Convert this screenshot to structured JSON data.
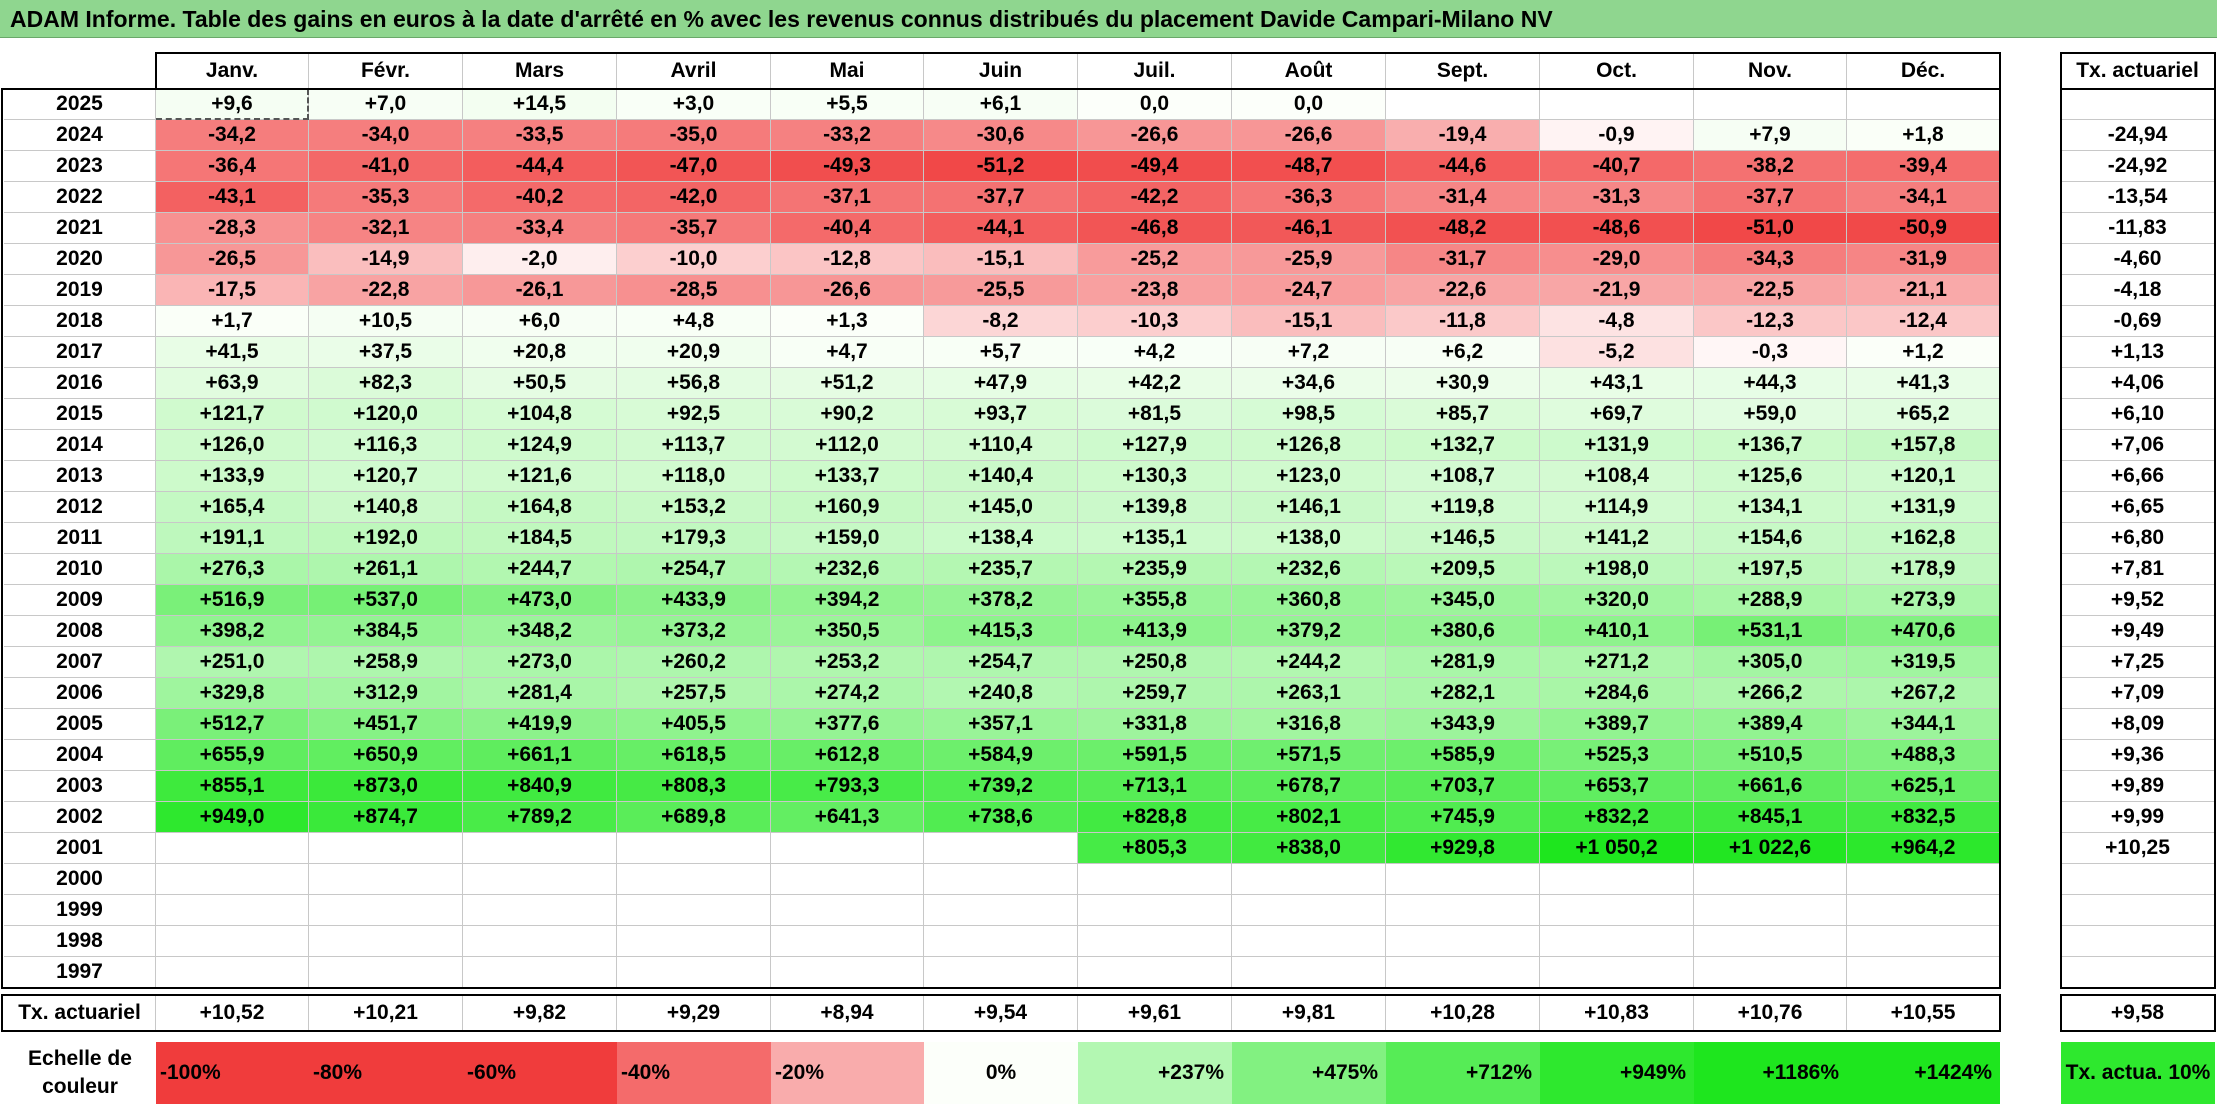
{
  "title": "ADAM Informe. Table des gains en euros à la date d'arrêté en % avec les revenus connus distribués du placement Davide Campari-Milano NV",
  "rate_header": "Tx. actuariel",
  "footer_label": "Tx. actuariel",
  "legend_label": "Echelle de couleur",
  "colors": {
    "neg_strong": "#f03c3c",
    "pos_strong": "#1ee61e",
    "neutral": "#ffffff",
    "title_bg": "#8fd68f"
  },
  "chart_data": {
    "type": "heatmap",
    "months": [
      "Janv.",
      "Févr.",
      "Mars",
      "Avril",
      "Mai",
      "Juin",
      "Juil.",
      "Août",
      "Sept.",
      "Oct.",
      "Nov.",
      "Déc."
    ],
    "years": [
      "2025",
      "2024",
      "2023",
      "2022",
      "2021",
      "2020",
      "2019",
      "2018",
      "2017",
      "2016",
      "2015",
      "2014",
      "2013",
      "2012",
      "2011",
      "2010",
      "2009",
      "2008",
      "2007",
      "2006",
      "2005",
      "2004",
      "2003",
      "2002",
      "2001",
      "2000",
      "1999",
      "1998",
      "1997"
    ],
    "values": [
      [
        "+9,6",
        "+7,0",
        "+14,5",
        "+3,0",
        "+5,5",
        "+6,1",
        "0,0",
        "0,0",
        "",
        "",
        "",
        ""
      ],
      [
        "-34,2",
        "-34,0",
        "-33,5",
        "-35,0",
        "-33,2",
        "-30,6",
        "-26,6",
        "-26,6",
        "-19,4",
        "-0,9",
        "+7,9",
        "+1,8"
      ],
      [
        "-36,4",
        "-41,0",
        "-44,4",
        "-47,0",
        "-49,3",
        "-51,2",
        "-49,4",
        "-48,7",
        "-44,6",
        "-40,7",
        "-38,2",
        "-39,4"
      ],
      [
        "-43,1",
        "-35,3",
        "-40,2",
        "-42,0",
        "-37,1",
        "-37,7",
        "-42,2",
        "-36,3",
        "-31,4",
        "-31,3",
        "-37,7",
        "-34,1"
      ],
      [
        "-28,3",
        "-32,1",
        "-33,4",
        "-35,7",
        "-40,4",
        "-44,1",
        "-46,8",
        "-46,1",
        "-48,2",
        "-48,6",
        "-51,0",
        "-50,9"
      ],
      [
        "-26,5",
        "-14,9",
        "-2,0",
        "-10,0",
        "-12,8",
        "-15,1",
        "-25,2",
        "-25,9",
        "-31,7",
        "-29,0",
        "-34,3",
        "-31,9"
      ],
      [
        "-17,5",
        "-22,8",
        "-26,1",
        "-28,5",
        "-26,6",
        "-25,5",
        "-23,8",
        "-24,7",
        "-22,6",
        "-21,9",
        "-22,5",
        "-21,1"
      ],
      [
        "+1,7",
        "+10,5",
        "+6,0",
        "+4,8",
        "+1,3",
        "-8,2",
        "-10,3",
        "-15,1",
        "-11,8",
        "-4,8",
        "-12,3",
        "-12,4"
      ],
      [
        "+41,5",
        "+37,5",
        "+20,8",
        "+20,9",
        "+4,7",
        "+5,7",
        "+4,2",
        "+7,2",
        "+6,2",
        "-5,2",
        "-0,3",
        "+1,2"
      ],
      [
        "+63,9",
        "+82,3",
        "+50,5",
        "+56,8",
        "+51,2",
        "+47,9",
        "+42,2",
        "+34,6",
        "+30,9",
        "+43,1",
        "+44,3",
        "+41,3"
      ],
      [
        "+121,7",
        "+120,0",
        "+104,8",
        "+92,5",
        "+90,2",
        "+93,7",
        "+81,5",
        "+98,5",
        "+85,7",
        "+69,7",
        "+59,0",
        "+65,2"
      ],
      [
        "+126,0",
        "+116,3",
        "+124,9",
        "+113,7",
        "+112,0",
        "+110,4",
        "+127,9",
        "+126,8",
        "+132,7",
        "+131,9",
        "+136,7",
        "+157,8"
      ],
      [
        "+133,9",
        "+120,7",
        "+121,6",
        "+118,0",
        "+133,7",
        "+140,4",
        "+130,3",
        "+123,0",
        "+108,7",
        "+108,4",
        "+125,6",
        "+120,1"
      ],
      [
        "+165,4",
        "+140,8",
        "+164,8",
        "+153,2",
        "+160,9",
        "+145,0",
        "+139,8",
        "+146,1",
        "+119,8",
        "+114,9",
        "+134,1",
        "+131,9"
      ],
      [
        "+191,1",
        "+192,0",
        "+184,5",
        "+179,3",
        "+159,0",
        "+138,4",
        "+135,1",
        "+138,0",
        "+146,5",
        "+141,2",
        "+154,6",
        "+162,8"
      ],
      [
        "+276,3",
        "+261,1",
        "+244,7",
        "+254,7",
        "+232,6",
        "+235,7",
        "+235,9",
        "+232,6",
        "+209,5",
        "+198,0",
        "+197,5",
        "+178,9"
      ],
      [
        "+516,9",
        "+537,0",
        "+473,0",
        "+433,9",
        "+394,2",
        "+378,2",
        "+355,8",
        "+360,8",
        "+345,0",
        "+320,0",
        "+288,9",
        "+273,9"
      ],
      [
        "+398,2",
        "+384,5",
        "+348,2",
        "+373,2",
        "+350,5",
        "+415,3",
        "+413,9",
        "+379,2",
        "+380,6",
        "+410,1",
        "+531,1",
        "+470,6"
      ],
      [
        "+251,0",
        "+258,9",
        "+273,0",
        "+260,2",
        "+253,2",
        "+254,7",
        "+250,8",
        "+244,2",
        "+281,9",
        "+271,2",
        "+305,0",
        "+319,5"
      ],
      [
        "+329,8",
        "+312,9",
        "+281,4",
        "+257,5",
        "+274,2",
        "+240,8",
        "+259,7",
        "+263,1",
        "+282,1",
        "+284,6",
        "+266,2",
        "+267,2"
      ],
      [
        "+512,7",
        "+451,7",
        "+419,9",
        "+405,5",
        "+377,6",
        "+357,1",
        "+331,8",
        "+316,8",
        "+343,9",
        "+389,7",
        "+389,4",
        "+344,1"
      ],
      [
        "+655,9",
        "+650,9",
        "+661,1",
        "+618,5",
        "+612,8",
        "+584,9",
        "+591,5",
        "+571,5",
        "+585,9",
        "+525,3",
        "+510,5",
        "+488,3"
      ],
      [
        "+855,1",
        "+873,0",
        "+840,9",
        "+808,3",
        "+793,3",
        "+739,2",
        "+713,1",
        "+678,7",
        "+703,7",
        "+653,7",
        "+661,6",
        "+625,1"
      ],
      [
        "+949,0",
        "+874,7",
        "+789,2",
        "+689,8",
        "+641,3",
        "+738,6",
        "+828,8",
        "+802,1",
        "+745,9",
        "+832,2",
        "+845,1",
        "+832,5"
      ],
      [
        "",
        "",
        "",
        "",
        "",
        "",
        "+805,3",
        "+838,0",
        "+929,8",
        "+1 050,2",
        "+1 022,6",
        "+964,2"
      ],
      [
        "",
        "",
        "",
        "",
        "",
        "",
        "",
        "",
        "",
        "",
        "",
        ""
      ],
      [
        "",
        "",
        "",
        "",
        "",
        "",
        "",
        "",
        "",
        "",
        "",
        ""
      ],
      [
        "",
        "",
        "",
        "",
        "",
        "",
        "",
        "",
        "",
        "",
        "",
        ""
      ],
      [
        "",
        "",
        "",
        "",
        "",
        "",
        "",
        "",
        "",
        "",
        "",
        ""
      ]
    ],
    "rates": [
      "",
      "-24,94",
      "-24,92",
      "-13,54",
      "-11,83",
      "-4,60",
      "-4,18",
      "-0,69",
      "+1,13",
      "+4,06",
      "+6,10",
      "+7,06",
      "+6,66",
      "+6,65",
      "+6,80",
      "+7,81",
      "+9,52",
      "+9,49",
      "+7,25",
      "+7,09",
      "+8,09",
      "+9,36",
      "+9,89",
      "+9,99",
      "+10,25",
      "",
      "",
      "",
      ""
    ],
    "rate_color_values": [
      null,
      -24.94,
      -24.92,
      -13.54,
      -11.83,
      -4.6,
      -4.18,
      -0.69,
      1.13,
      4.06,
      6.1,
      7.06,
      6.66,
      6.65,
      6.8,
      7.81,
      9.52,
      9.49,
      7.25,
      7.09,
      8.09,
      9.36,
      9.89,
      9.99,
      10.25,
      null,
      null,
      null,
      null
    ],
    "footer_rates": [
      "+10,52",
      "+10,21",
      "+9,82",
      "+9,29",
      "+8,94",
      "+9,54",
      "+9,61",
      "+9,81",
      "+10,28",
      "+10,83",
      "+10,76",
      "+10,55"
    ],
    "footer_total": "+9,58",
    "scale": [
      {
        "label": "-100%",
        "value": -100
      },
      {
        "label": "-80%",
        "value": -80
      },
      {
        "label": "-60%",
        "value": -60
      },
      {
        "label": "-40%",
        "value": -40
      },
      {
        "label": "-20%",
        "value": -20
      },
      {
        "label": "0%",
        "value": 0
      },
      {
        "label": "+237%",
        "value": 237
      },
      {
        "label": "+475%",
        "value": 475
      },
      {
        "label": "+712%",
        "value": 712
      },
      {
        "label": "+949%",
        "value": 949
      },
      {
        "label": "+1186%",
        "value": 1186
      },
      {
        "label": "+1424%",
        "value": 1424
      }
    ],
    "scale_rate_label": "Tx. actua. 10%"
  }
}
